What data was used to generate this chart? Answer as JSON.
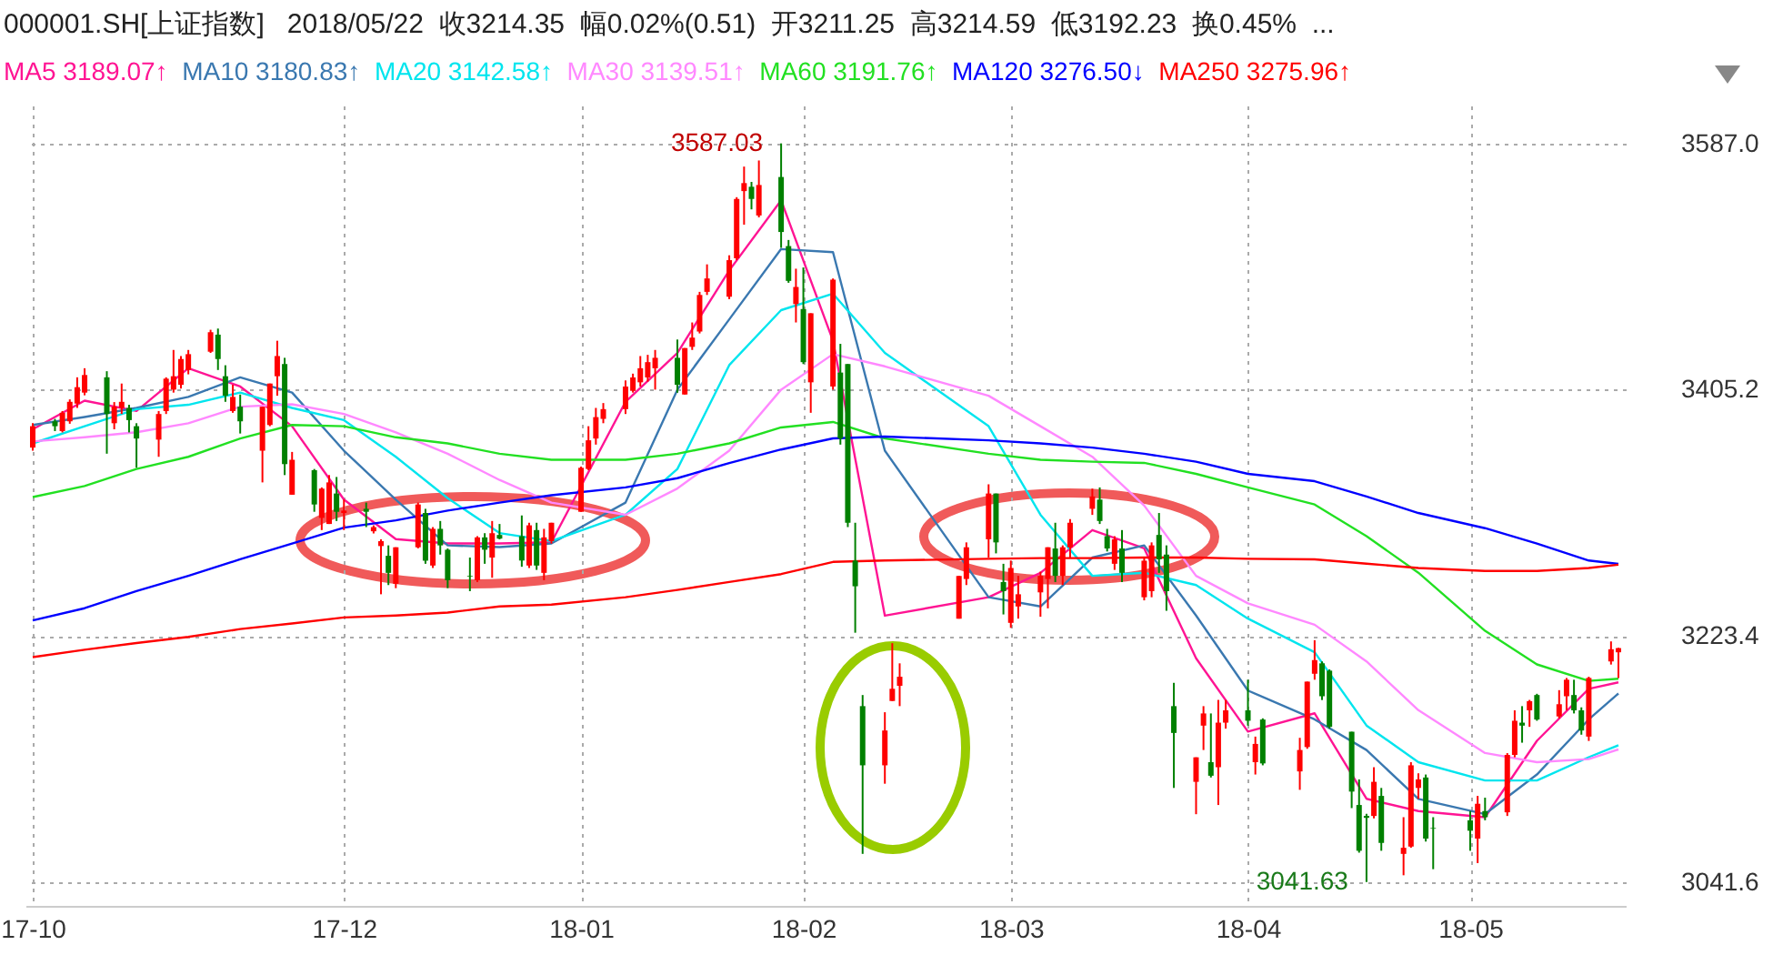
{
  "chart_data": {
    "type": "candlestick",
    "title": "000001.SH[上证指数]   2018/05/22  收3214.35  幅0.02%(0.51)  开3211.25  高3214.59  低3192.23  换0.45%  ...",
    "x": [
      "2017-10-20",
      "2017-10-23",
      "2017-10-24",
      "2017-10-25",
      "2017-10-26",
      "2017-10-27",
      "2017-10-30",
      "2017-10-31",
      "2017-11-01",
      "2017-11-02",
      "2017-11-03",
      "2017-11-06",
      "2017-11-07",
      "2017-11-08",
      "2017-11-09",
      "2017-11-10",
      "2017-11-13",
      "2017-11-14",
      "2017-11-15",
      "2017-11-16",
      "2017-11-17",
      "2017-11-20",
      "2017-11-21",
      "2017-11-22",
      "2017-11-23",
      "2017-11-24",
      "2017-11-27",
      "2017-11-28",
      "2017-11-29",
      "2017-11-30",
      "2017-12-01",
      "2017-12-04",
      "2017-12-05",
      "2017-12-06",
      "2017-12-07",
      "2017-12-08",
      "2017-12-11",
      "2017-12-12",
      "2017-12-13",
      "2017-12-14",
      "2017-12-15",
      "2017-12-18",
      "2017-12-19",
      "2017-12-20",
      "2017-12-21",
      "2017-12-22",
      "2017-12-25",
      "2017-12-26",
      "2017-12-27",
      "2017-12-28",
      "2017-12-29",
      "2018-01-02",
      "2018-01-03",
      "2018-01-04",
      "2018-01-05",
      "2018-01-08",
      "2018-01-09",
      "2018-01-10",
      "2018-01-11",
      "2018-01-12",
      "2018-01-15",
      "2018-01-16",
      "2018-01-17",
      "2018-01-18",
      "2018-01-19",
      "2018-01-22",
      "2018-01-23",
      "2018-01-24",
      "2018-01-25",
      "2018-01-26",
      "2018-01-29",
      "2018-01-30",
      "2018-01-31",
      "2018-02-01",
      "2018-02-02",
      "2018-02-05",
      "2018-02-06",
      "2018-02-07",
      "2018-02-08",
      "2018-02-09",
      "2018-02-12",
      "2018-02-13",
      "2018-02-14",
      "2018-02-22",
      "2018-02-23",
      "2018-02-26",
      "2018-02-27",
      "2018-02-28",
      "2018-03-01",
      "2018-03-02",
      "2018-03-05",
      "2018-03-06",
      "2018-03-07",
      "2018-03-08",
      "2018-03-09",
      "2018-03-12",
      "2018-03-13",
      "2018-03-14",
      "2018-03-15",
      "2018-03-16",
      "2018-03-19",
      "2018-03-20",
      "2018-03-21",
      "2018-03-22",
      "2018-03-23",
      "2018-03-26",
      "2018-03-27",
      "2018-03-28",
      "2018-03-29",
      "2018-03-30",
      "2018-04-02",
      "2018-04-03",
      "2018-04-04",
      "2018-04-09",
      "2018-04-10",
      "2018-04-11",
      "2018-04-12",
      "2018-04-13",
      "2018-04-16",
      "2018-04-17",
      "2018-04-18",
      "2018-04-19",
      "2018-04-20",
      "2018-04-23",
      "2018-04-24",
      "2018-04-25",
      "2018-04-26",
      "2018-04-27",
      "2018-05-02",
      "2018-05-03",
      "2018-05-04",
      "2018-05-07",
      "2018-05-08",
      "2018-05-09",
      "2018-05-10",
      "2018-05-11",
      "2018-05-14",
      "2018-05-15",
      "2018-05-16",
      "2018-05-17",
      "2018-05-18",
      "2018-05-21",
      "2018-05-22"
    ],
    "ohlc": [
      [
        3362.4,
        3380.4,
        3360.1,
        3378.2
      ],
      [
        3381.8,
        3383.6,
        3374.6,
        3378.2
      ],
      [
        3374.6,
        3389.4,
        3373.6,
        3388.1
      ],
      [
        3381.8,
        3398,
        3380,
        3396.2
      ],
      [
        3394.9,
        3414.3,
        3391.7,
        3407
      ],
      [
        3403,
        3421,
        3401,
        3416
      ],
      [
        3414.3,
        3418.8,
        3357.9,
        3387.2
      ],
      [
        3380.4,
        3396,
        3375.9,
        3392.6
      ],
      [
        3391.7,
        3409.7,
        3387.2,
        3396.2
      ],
      [
        3391.7,
        3394,
        3373.6,
        3382.7
      ],
      [
        3378.2,
        3380.4,
        3347.5,
        3369.1
      ],
      [
        3368.3,
        3389.4,
        3355.6,
        3387.2
      ],
      [
        3389.4,
        3414.3,
        3387.2,
        3413.3
      ],
      [
        3405.2,
        3434.5,
        3403,
        3415.1
      ],
      [
        3408.8,
        3430,
        3406,
        3427.8
      ],
      [
        3419.7,
        3434.5,
        3416.5,
        3431.4
      ],
      [
        3433.2,
        3449.4,
        3432.3,
        3447.6
      ],
      [
        3445.8,
        3450.3,
        3419.7,
        3427.8
      ],
      [
        3415.1,
        3423.2,
        3396.2,
        3400.7
      ],
      [
        3389.4,
        3408.8,
        3388.1,
        3399.8
      ],
      [
        3392.6,
        3401.6,
        3372.8,
        3381.8
      ],
      [
        3360.1,
        3392.6,
        3336.7,
        3392.6
      ],
      [
        3379.1,
        3409.7,
        3378.2,
        3409.7
      ],
      [
        3415.1,
        3441.3,
        3400.7,
        3430
      ],
      [
        3424.1,
        3428.7,
        3342.1,
        3350.2
      ],
      [
        3327.6,
        3359.2,
        3327.6,
        3353.4
      ],
      [
        3345.7,
        3346.6,
        3315,
        3320.4
      ],
      [
        3310.5,
        3333,
        3301.5,
        3332.1
      ],
      [
        3306,
        3342.1,
        3306,
        3336.7
      ],
      [
        3328.5,
        3340.7,
        3308.2,
        3315
      ],
      [
        3314.1,
        3324,
        3301.5,
        3315.9
      ],
      [
        3317.2,
        3321.8,
        3303.7,
        3315
      ],
      [
        3300.6,
        3305,
        3299,
        3303.7
      ],
      [
        3289.7,
        3294.7,
        3254.1,
        3293.3
      ],
      [
        3282.5,
        3290.2,
        3260.9,
        3269.9
      ],
      [
        3261.8,
        3288.8,
        3258.6,
        3288.8
      ],
      [
        3288.8,
        3321.8,
        3288,
        3320.4
      ],
      [
        3314.1,
        3317.2,
        3276.6,
        3278.9
      ],
      [
        3275.3,
        3303.7,
        3273.5,
        3302.4
      ],
      [
        3302.4,
        3308.2,
        3283.4,
        3290.2
      ],
      [
        3287,
        3287.9,
        3258.6,
        3264.5
      ],
      [
        3267.7,
        3281.2,
        3256.4,
        3267.2
      ],
      [
        3264.5,
        3297,
        3263.1,
        3296.1
      ],
      [
        3296.1,
        3299.2,
        3276.6,
        3287
      ],
      [
        3281.2,
        3308.2,
        3266.3,
        3299.2
      ],
      [
        3297.9,
        3306,
        3294.7,
        3295.2
      ],
      [
        3297,
        3312.3,
        3274.4,
        3279
      ],
      [
        3275.3,
        3306.9,
        3273.5,
        3305
      ],
      [
        3301.5,
        3306.9,
        3272.1,
        3275.3
      ],
      [
        3269.9,
        3302.4,
        3264.5,
        3296.1
      ],
      [
        3293.3,
        3306.9,
        3291.5,
        3306.9
      ],
      [
        3315,
        3348.4,
        3315,
        3347.5
      ],
      [
        3346.6,
        3378.2,
        3345.7,
        3367.8
      ],
      [
        3369.1,
        3391.7,
        3364.6,
        3384.9
      ],
      [
        3383.6,
        3395.3,
        3380.4,
        3390.8
      ],
      [
        3390.8,
        3412,
        3387.2,
        3407.5
      ],
      [
        3404.3,
        3417,
        3403,
        3414.2
      ],
      [
        3410.6,
        3430,
        3407.5,
        3421
      ],
      [
        3414.2,
        3430.9,
        3411.1,
        3425.5
      ],
      [
        3421,
        3434.5,
        3405.2,
        3428.7
      ],
      [
        3428.7,
        3442.2,
        3402.9,
        3408.8
      ],
      [
        3401.6,
        3435.9,
        3401.6,
        3435.9
      ],
      [
        3436.8,
        3454.8,
        3434.5,
        3443.6
      ],
      [
        3448.1,
        3477.4,
        3446.7,
        3475.1
      ],
      [
        3477.4,
        3497.7,
        3475.1,
        3487.3
      ],
      [
        3473.8,
        3504.4,
        3472,
        3500.8
      ],
      [
        3502.2,
        3547.3,
        3500.8,
        3546
      ],
      [
        3551.8,
        3569.9,
        3527,
        3557.7
      ],
      [
        3555,
        3558.6,
        3538.3,
        3546
      ],
      [
        3533.8,
        3574.4,
        3532.4,
        3556.3
      ],
      [
        3562.2,
        3587.03,
        3509.9,
        3521.6
      ],
      [
        3511.2,
        3515.7,
        3484.1,
        3485.5
      ],
      [
        3468.4,
        3494.5,
        3454.8,
        3481
      ],
      [
        3464.7,
        3495.4,
        3424.1,
        3425.5
      ],
      [
        3410.6,
        3461.6,
        3388.1,
        3461.6
      ],
      [
        3407.5,
        3487.3,
        3405.2,
        3486.4
      ],
      [
        3417.8,
        3439,
        3364.6,
        3369.1
      ],
      [
        3424.1,
        3424.1,
        3303.7,
        3306.9
      ],
      [
        3278.9,
        3306.9,
        3225.7,
        3260
      ],
      [
        3171.5,
        3179.7,
        3062.4,
        3127.8
      ],
      [
        3127.8,
        3167,
        3114.2,
        3153.5
      ],
      [
        3175.3,
        3218,
        3175.3,
        3184.3
      ],
      [
        3186.5,
        3203.1,
        3171.5,
        3193.2
      ],
      [
        3236.1,
        3267.7,
        3236.1,
        3267.7
      ],
      [
        3265.4,
        3292.4,
        3260.9,
        3288.8
      ],
      [
        3294.7,
        3335.3,
        3281.2,
        3328.5
      ],
      [
        3328.5,
        3328.5,
        3284.3,
        3292.4
      ],
      [
        3263.1,
        3276.6,
        3239.2,
        3256.4
      ],
      [
        3233,
        3279,
        3229.3,
        3273.5
      ],
      [
        3245.1,
        3267.7,
        3236.1,
        3254.1
      ],
      [
        3255.5,
        3270.8,
        3237.5,
        3267.7
      ],
      [
        3265.4,
        3288.8,
        3243.7,
        3288.8
      ],
      [
        3287.9,
        3306.9,
        3263.1,
        3267.7
      ],
      [
        3267.7,
        3290.2,
        3260.9,
        3288.8
      ],
      [
        3288.8,
        3309.6,
        3281.2,
        3306.9
      ],
      [
        3317.2,
        3332.1,
        3312.7,
        3326.3
      ],
      [
        3324,
        3333,
        3306,
        3308.2
      ],
      [
        3297,
        3302.4,
        3285.7,
        3287.9
      ],
      [
        3276.6,
        3297,
        3272.1,
        3294.7
      ],
      [
        3287.9,
        3301.5,
        3263.1,
        3269.9
      ],
      [
        3251.9,
        3281.2,
        3249.6,
        3278.9
      ],
      [
        3256.4,
        3292.4,
        3251.9,
        3290.2
      ],
      [
        3297.9,
        3314.1,
        3269.9,
        3279.9
      ],
      [
        3283.4,
        3290.2,
        3241.9,
        3256.4
      ],
      [
        3171.5,
        3188.7,
        3111.1,
        3151.7
      ],
      [
        3115.6,
        3133.7,
        3091.7,
        3133.7
      ],
      [
        3157.1,
        3171.5,
        3139.1,
        3166.1
      ],
      [
        3130.1,
        3166.1,
        3118.8,
        3120.1
      ],
      [
        3126.4,
        3176.1,
        3098.5,
        3159.3
      ],
      [
        3159.3,
        3176.1,
        3154.9,
        3168.4
      ],
      [
        3168.4,
        3191,
        3157.1,
        3160.7
      ],
      [
        3130.1,
        3149,
        3121,
        3143.6
      ],
      [
        3161.6,
        3162.5,
        3127.8,
        3129.2
      ],
      [
        3123.3,
        3148.1,
        3109.7,
        3139.1
      ],
      [
        3141.3,
        3189.6,
        3140,
        3189.6
      ],
      [
        3195.4,
        3220.2,
        3191,
        3205.5
      ],
      [
        3203.1,
        3204.5,
        3176,
        3178.8
      ],
      [
        3197.7,
        3198.6,
        3154.9,
        3156.2
      ],
      [
        3152.6,
        3152.6,
        3096.2,
        3108.4
      ],
      [
        3098.5,
        3117.4,
        3063.3,
        3064.7
      ],
      [
        3090.5,
        3092,
        3041.63,
        3089
      ],
      [
        3090.4,
        3126.4,
        3088.6,
        3115.6
      ],
      [
        3105.2,
        3111.1,
        3064.7,
        3070.5
      ],
      [
        3062.4,
        3089.5,
        3046.6,
        3066.9
      ],
      [
        3067.8,
        3130.1,
        3066.9,
        3127.8
      ],
      [
        3111.1,
        3121.9,
        3103,
        3117.4
      ],
      [
        3118.8,
        3121,
        3071.5,
        3073.7
      ],
      [
        3081.5,
        3089.5,
        3051.1,
        3081
      ],
      [
        3087.2,
        3094,
        3064.7,
        3079.5
      ],
      [
        3073.7,
        3105.2,
        3055.6,
        3099.4
      ],
      [
        3094,
        3103.9,
        3087.2,
        3089.5
      ],
      [
        3093.1,
        3136.8,
        3090.4,
        3135.5
      ],
      [
        3135.5,
        3168.4,
        3133.7,
        3160.7
      ],
      [
        3159.3,
        3171.5,
        3144.5,
        3157.1
      ],
      [
        3168.4,
        3176.1,
        3156.2,
        3175.2
      ],
      [
        3179.7,
        3180.6,
        3160.7,
        3161.6
      ],
      [
        3163.9,
        3183.3,
        3162.5,
        3172.9
      ],
      [
        3178.8,
        3192.3,
        3168.4,
        3191
      ],
      [
        3179.7,
        3191,
        3166.1,
        3168.4
      ],
      [
        3168.4,
        3170.6,
        3150.4,
        3153.5
      ],
      [
        3149,
        3193.2,
        3145.8,
        3192.3
      ],
      [
        3204.5,
        3219.3,
        3202.2,
        3213.5
      ],
      [
        3211.25,
        3214.59,
        3192.23,
        3214.35
      ]
    ],
    "series": [
      {
        "name": "MA5 3189.07↑",
        "type": "line",
        "color": "#ff1493",
        "x": [
          "2017-10-20",
          "2017-10-27",
          "2017-11-03",
          "2017-11-10",
          "2017-11-17",
          "2017-11-24",
          "2017-12-01",
          "2017-12-08",
          "2017-12-15",
          "2017-12-22",
          "2017-12-29",
          "2018-01-08",
          "2018-01-15",
          "2018-01-22",
          "2018-01-29",
          "2018-02-05",
          "2018-02-12",
          "2018-02-26",
          "2018-03-05",
          "2018-03-12",
          "2018-03-19",
          "2018-03-26",
          "2018-04-02",
          "2018-04-11",
          "2018-04-18",
          "2018-04-25",
          "2018-05-04",
          "2018-05-11",
          "2018-05-18",
          "2018-05-22"
        ],
        "values": [
          3375.9,
          3397.1,
          3389.4,
          3421,
          3407.5,
          3378.2,
          3324,
          3294.8,
          3291.6,
          3291.6,
          3292.5,
          3396.2,
          3432.3,
          3493.2,
          3545,
          3441.3,
          3238.3,
          3251.9,
          3269.9,
          3301.5,
          3288,
          3206.8,
          3152.7,
          3166.2,
          3103.1,
          3094,
          3089.5,
          3145.9,
          3184.3,
          3189.07
        ]
      },
      {
        "name": "MA10 3180.83↑",
        "type": "line",
        "color": "#3a78b0",
        "x": [
          "2017-10-20",
          "2017-10-27",
          "2017-11-03",
          "2017-11-10",
          "2017-11-17",
          "2017-11-24",
          "2017-12-01",
          "2017-12-08",
          "2017-12-15",
          "2017-12-22",
          "2017-12-29",
          "2018-01-08",
          "2018-01-15",
          "2018-01-22",
          "2018-01-29",
          "2018-02-05",
          "2018-02-12",
          "2018-02-26",
          "2018-03-05",
          "2018-03-12",
          "2018-03-19",
          "2018-03-26",
          "2018-04-02",
          "2018-04-11",
          "2018-04-18",
          "2018-04-25",
          "2018-05-04",
          "2018-05-11",
          "2018-05-18",
          "2018-05-22"
        ],
        "values": [
          3379.1,
          3385,
          3391.7,
          3399.8,
          3414.3,
          3403,
          3360.1,
          3324,
          3290.2,
          3288.9,
          3291.6,
          3321.8,
          3405.2,
          3457.1,
          3509,
          3506.7,
          3360.1,
          3251.9,
          3245.1,
          3281.2,
          3290.2,
          3238.4,
          3183,
          3161.7,
          3139.1,
          3103,
          3091.8,
          3121,
          3161.7,
          3180.83
        ]
      },
      {
        "name": "MA20 3142.58↑",
        "type": "line",
        "color": "#00e5ee",
        "x": [
          "2017-10-20",
          "2017-10-27",
          "2017-11-03",
          "2017-11-10",
          "2017-11-17",
          "2017-11-24",
          "2017-12-01",
          "2017-12-08",
          "2017-12-15",
          "2017-12-22",
          "2017-12-29",
          "2018-01-08",
          "2018-01-15",
          "2018-01-22",
          "2018-01-29",
          "2018-02-05",
          "2018-02-12",
          "2018-02-26",
          "2018-03-05",
          "2018-03-12",
          "2018-03-19",
          "2018-03-26",
          "2018-04-02",
          "2018-04-11",
          "2018-04-18",
          "2018-04-25",
          "2018-05-04",
          "2018-05-11",
          "2018-05-18",
          "2018-05-22"
        ],
        "values": [
          3365.5,
          3378.2,
          3390.8,
          3394,
          3403,
          3391.7,
          3382.7,
          3355.6,
          3325,
          3299.3,
          3293.4,
          3312.8,
          3346.6,
          3423.3,
          3463.9,
          3476,
          3432.3,
          3378.2,
          3312.8,
          3267.7,
          3270,
          3260.9,
          3236.1,
          3211.3,
          3157.2,
          3130.1,
          3116.6,
          3116.6,
          3133.8,
          3142.58
        ]
      },
      {
        "name": "MA30 3139.51↑",
        "type": "line",
        "color": "#ff88ff",
        "x": [
          "2017-10-20",
          "2017-10-27",
          "2017-11-03",
          "2017-11-10",
          "2017-11-17",
          "2017-11-24",
          "2017-12-01",
          "2017-12-08",
          "2017-12-15",
          "2017-12-22",
          "2017-12-29",
          "2018-01-08",
          "2018-01-15",
          "2018-01-22",
          "2018-01-29",
          "2018-02-05",
          "2018-02-12",
          "2018-02-26",
          "2018-03-05",
          "2018-03-12",
          "2018-03-19",
          "2018-03-26",
          "2018-04-02",
          "2018-04-11",
          "2018-04-18",
          "2018-04-25",
          "2018-05-04",
          "2018-05-11",
          "2018-05-18",
          "2018-05-22"
        ],
        "values": [
          3366.9,
          3370,
          3373.7,
          3380.4,
          3392.6,
          3394.4,
          3387.2,
          3373.7,
          3357.9,
          3338.5,
          3321.8,
          3312.8,
          3332.2,
          3360.1,
          3405.2,
          3431.4,
          3422.4,
          3400.7,
          3378.2,
          3355.6,
          3319.6,
          3267.7,
          3247.4,
          3231.6,
          3204.5,
          3168.5,
          3136.9,
          3130.1,
          3132.4,
          3139.51
        ]
      },
      {
        "name": "MA60 3191.76↑",
        "type": "line",
        "color": "#22e022",
        "x": [
          "2017-10-20",
          "2017-10-27",
          "2017-11-03",
          "2017-11-10",
          "2017-11-17",
          "2017-11-24",
          "2017-12-01",
          "2017-12-08",
          "2017-12-15",
          "2017-12-22",
          "2017-12-29",
          "2018-01-08",
          "2018-01-15",
          "2018-01-22",
          "2018-01-29",
          "2018-02-05",
          "2018-02-12",
          "2018-02-26",
          "2018-03-05",
          "2018-03-12",
          "2018-03-19",
          "2018-03-26",
          "2018-04-02",
          "2018-04-11",
          "2018-04-18",
          "2018-04-25",
          "2018-05-04",
          "2018-05-11",
          "2018-05-18",
          "2018-05-22"
        ],
        "values": [
          3325.9,
          3334,
          3346.6,
          3355.6,
          3369.1,
          3379.1,
          3378.2,
          3370,
          3365.5,
          3357.9,
          3353.4,
          3353.4,
          3357.9,
          3365.5,
          3377.3,
          3381.3,
          3369.2,
          3357.9,
          3353.4,
          3352,
          3351.1,
          3343,
          3333,
          3320.4,
          3297,
          3270,
          3227.1,
          3202.3,
          3190.1,
          3191.76
        ]
      },
      {
        "name": "MA120 3276.50↓",
        "type": "line",
        "color": "#0000ff",
        "x": [
          "2017-10-20",
          "2017-10-27",
          "2017-11-03",
          "2017-11-10",
          "2017-11-17",
          "2017-11-24",
          "2017-12-01",
          "2017-12-08",
          "2017-12-15",
          "2017-12-22",
          "2017-12-29",
          "2018-01-08",
          "2018-01-15",
          "2018-01-22",
          "2018-01-29",
          "2018-02-05",
          "2018-02-12",
          "2018-02-26",
          "2018-03-05",
          "2018-03-12",
          "2018-03-19",
          "2018-03-26",
          "2018-04-02",
          "2018-04-11",
          "2018-04-18",
          "2018-04-25",
          "2018-05-04",
          "2018-05-11",
          "2018-05-18",
          "2018-05-22"
        ],
        "values": [
          3234.8,
          3243.8,
          3256.4,
          3267.7,
          3279.9,
          3291.6,
          3303.3,
          3308.7,
          3315.9,
          3321.8,
          3327.2,
          3333,
          3339.8,
          3351,
          3361,
          3369.2,
          3370.5,
          3367.8,
          3365.5,
          3362.4,
          3357.9,
          3352,
          3343,
          3337.6,
          3326.3,
          3314.1,
          3302.9,
          3291.6,
          3279,
          3276.5
        ]
      },
      {
        "name": "MA250 3275.96↑",
        "type": "line",
        "color": "#ff0000",
        "x": [
          "2017-10-20",
          "2017-10-27",
          "2017-11-03",
          "2017-11-10",
          "2017-11-17",
          "2017-11-24",
          "2017-12-01",
          "2017-12-08",
          "2017-12-15",
          "2017-12-22",
          "2017-12-29",
          "2018-01-08",
          "2018-01-15",
          "2018-01-22",
          "2018-01-29",
          "2018-02-05",
          "2018-02-12",
          "2018-02-26",
          "2018-03-05",
          "2018-03-12",
          "2018-03-19",
          "2018-03-26",
          "2018-04-02",
          "2018-04-11",
          "2018-04-18",
          "2018-04-25",
          "2018-05-04",
          "2018-05-11",
          "2018-05-18",
          "2018-05-22"
        ],
        "values": [
          3207.7,
          3213.1,
          3218.1,
          3222.6,
          3228.4,
          3232.5,
          3237,
          3238.4,
          3240.6,
          3245.1,
          3246.5,
          3251.9,
          3257.3,
          3263.2,
          3269,
          3278,
          3279,
          3280.3,
          3280.8,
          3280.8,
          3281.2,
          3281.2,
          3280.3,
          3279.9,
          3276.7,
          3273.5,
          3271.3,
          3271.3,
          3273.5,
          3275.96
        ]
      }
    ],
    "xlim": [
      "2017-10-20",
      "2018-05-22"
    ],
    "xticks": [
      {
        "value": "2017-10-20",
        "label": "17-10"
      },
      {
        "value": "2017-12-01",
        "label": "17-12"
      },
      {
        "value": "2018-01-02",
        "label": "18-01"
      },
      {
        "value": "2018-02-01",
        "label": "18-02"
      },
      {
        "value": "2018-03-01",
        "label": "18-03"
      },
      {
        "value": "2018-04-02",
        "label": "18-04"
      },
      {
        "value": "2018-05-02",
        "label": "18-05"
      }
    ],
    "ylim": [
      3024,
      3615
    ],
    "yticks": [
      {
        "value": 3041.63,
        "label": "3041.6"
      },
      {
        "value": 3223.43,
        "label": "3223.4"
      },
      {
        "value": 3405.23,
        "label": "3405.2"
      },
      {
        "value": 3587.03,
        "label": "3587.0"
      }
    ],
    "annotations": [
      {
        "text": "3587.03",
        "x": "2018-01-29",
        "y": 3587.03
      },
      {
        "text": "3041.63",
        "x": "2018-04-18",
        "y": 3041.63
      }
    ],
    "grid": true,
    "legend": "top left"
  }
}
